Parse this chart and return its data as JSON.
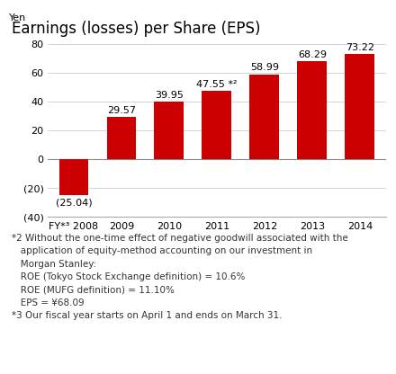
{
  "title": "Earnings (losses) per Share (EPS)",
  "yen_label": "Yen",
  "categories": [
    "FY*³ 2008",
    "2009",
    "2010",
    "2011",
    "2012",
    "2013",
    "2014"
  ],
  "values": [
    -25.04,
    29.57,
    39.95,
    47.55,
    58.99,
    68.29,
    73.22
  ],
  "bar_color": "#cc0000",
  "display_labels": [
    "(25.04)",
    "29.57",
    "39.95",
    "47.55 *²",
    "58.99",
    "68.29",
    "73.22"
  ],
  "ylim": [
    -40,
    90
  ],
  "yticks": [
    -40,
    -20,
    0,
    20,
    40,
    60,
    80
  ],
  "ytick_labels": [
    "(40)",
    "(20)",
    "0",
    "20",
    "40",
    "60",
    "80"
  ],
  "background_color": "#ffffff",
  "footnote_lines": [
    "*2 Without the one-time effect of negative goodwill associated with the",
    "   application of equity-method accounting on our investment in",
    "   Morgan Stanley:",
    "   ROE (Tokyo Stock Exchange definition) = 10.6%",
    "   ROE (MUFG definition) = 11.10%",
    "   EPS = ¥68.09",
    "*3 Our fiscal year starts on April 1 and ends on March 31."
  ],
  "title_fontsize": 12,
  "bar_label_fontsize": 8,
  "tick_fontsize": 8,
  "yen_fontsize": 8,
  "footnote_fontsize": 7.5
}
